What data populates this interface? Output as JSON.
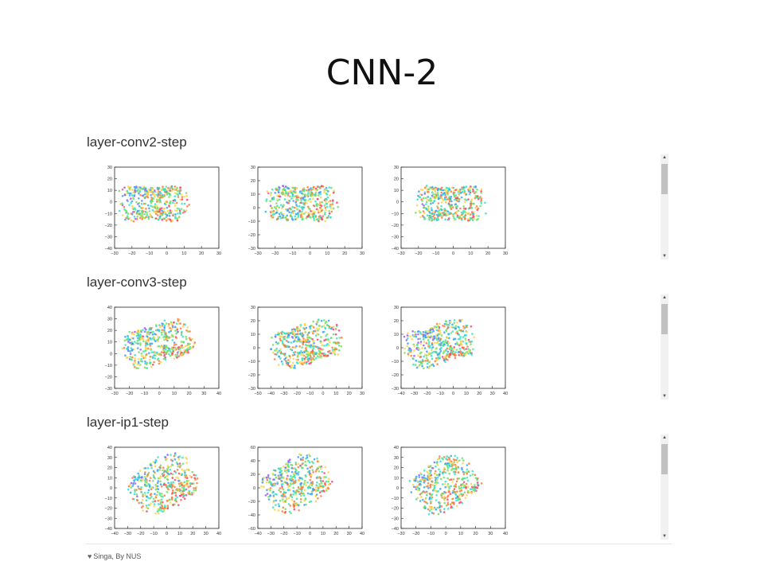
{
  "slide": {
    "title": "CNN-2"
  },
  "sections": [
    {
      "title": "layer-conv2-step",
      "plots": [
        {
          "xticks": [
            "−30",
            "−20",
            "−10",
            "0",
            "10",
            "20",
            "30"
          ],
          "yticks": [
            "30",
            "20",
            "10",
            "0",
            "−10",
            "−20",
            "−30",
            "−40"
          ],
          "xlim": [
            -30,
            30
          ],
          "ylim": [
            -40,
            30
          ]
        },
        {
          "xticks": [
            "−30",
            "−20",
            "−10",
            "0",
            "10",
            "20",
            "30"
          ],
          "yticks": [
            "30",
            "20",
            "10",
            "0",
            "−10",
            "−20",
            "−30"
          ],
          "xlim": [
            -30,
            30
          ],
          "ylim": [
            -30,
            30
          ]
        },
        {
          "xticks": [
            "−30",
            "−20",
            "−10",
            "0",
            "10",
            "20",
            "30"
          ],
          "yticks": [
            "30",
            "20",
            "10",
            "0",
            "−10",
            "−20",
            "−30",
            "−40"
          ],
          "xlim": [
            -30,
            30
          ],
          "ylim": [
            -40,
            30
          ]
        }
      ]
    },
    {
      "title": "layer-conv3-step",
      "plots": [
        {
          "xticks": [
            "−30",
            "−20",
            "−10",
            "0",
            "10",
            "20",
            "30",
            "40"
          ],
          "yticks": [
            "40",
            "30",
            "20",
            "10",
            "0",
            "−10",
            "−20",
            "−30"
          ],
          "xlim": [
            -30,
            40
          ],
          "ylim": [
            -30,
            40
          ]
        },
        {
          "xticks": [
            "−50",
            "−40",
            "−30",
            "−20",
            "−10",
            "0",
            "10",
            "20",
            "30"
          ],
          "yticks": [
            "30",
            "20",
            "10",
            "0",
            "−10",
            "−20",
            "−30"
          ],
          "xlim": [
            -50,
            30
          ],
          "ylim": [
            -30,
            30
          ]
        },
        {
          "xticks": [
            "−40",
            "−30",
            "−20",
            "−10",
            "0",
            "10",
            "20",
            "30",
            "40"
          ],
          "yticks": [
            "30",
            "20",
            "10",
            "0",
            "−10",
            "−20",
            "−30"
          ],
          "xlim": [
            -40,
            40
          ],
          "ylim": [
            -30,
            30
          ]
        }
      ]
    },
    {
      "title": "layer-ip1-step",
      "plots": [
        {
          "xticks": [
            "−40",
            "−30",
            "−20",
            "−10",
            "0",
            "10",
            "20",
            "30",
            "40"
          ],
          "yticks": [
            "40",
            "30",
            "20",
            "10",
            "0",
            "−10",
            "−20",
            "−30",
            "−40"
          ],
          "xlim": [
            -40,
            40
          ],
          "ylim": [
            -40,
            40
          ]
        },
        {
          "xticks": [
            "−40",
            "−30",
            "−20",
            "−10",
            "0",
            "10",
            "20",
            "30",
            "40"
          ],
          "yticks": [
            "60",
            "40",
            "20",
            "0",
            "−20",
            "−40",
            "−60"
          ],
          "xlim": [
            -40,
            40
          ],
          "ylim": [
            -60,
            60
          ]
        },
        {
          "xticks": [
            "−30",
            "−20",
            "−10",
            "0",
            "10",
            "20",
            "30",
            "40"
          ],
          "yticks": [
            "40",
            "30",
            "20",
            "10",
            "0",
            "−10",
            "−20",
            "−30",
            "−40"
          ],
          "xlim": [
            -30,
            40
          ],
          "ylim": [
            -40,
            40
          ]
        }
      ]
    }
  ],
  "footer": {
    "text": "Singa, By NUS",
    "icon": "heart-icon"
  },
  "colors": {
    "point_palette": [
      "#ff4fa3",
      "#9b59ff",
      "#3aa0ff",
      "#2ee6c8",
      "#6fe060",
      "#ffd24a",
      "#ff7a3a",
      "#ff3f6e"
    ]
  }
}
